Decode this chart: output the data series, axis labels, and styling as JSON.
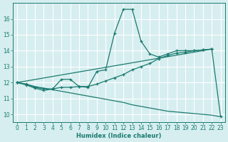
{
  "title": "",
  "xlabel": "Humidex (Indice chaleur)",
  "bg_color": "#d6eef0",
  "grid_color": "#b8d8dc",
  "line_color": "#1a7a6e",
  "xlim": [
    -0.5,
    23.5
  ],
  "ylim": [
    9.5,
    17.0
  ],
  "xticks": [
    0,
    1,
    2,
    3,
    4,
    5,
    6,
    7,
    8,
    9,
    10,
    11,
    12,
    13,
    14,
    15,
    16,
    17,
    18,
    19,
    20,
    21,
    22,
    23
  ],
  "yticks": [
    10,
    11,
    12,
    13,
    14,
    15,
    16
  ],
  "series1_x": [
    0,
    1,
    2,
    3,
    4,
    5,
    6,
    7,
    8,
    9,
    10,
    11,
    12,
    13,
    14,
    15,
    16,
    17,
    18,
    19,
    20,
    21,
    22
  ],
  "series1_y": [
    12.0,
    11.85,
    11.65,
    11.5,
    11.6,
    12.2,
    12.2,
    11.75,
    11.7,
    12.7,
    12.8,
    15.1,
    16.6,
    16.6,
    14.6,
    13.8,
    13.6,
    13.8,
    14.0,
    14.0,
    14.0,
    14.05,
    14.1
  ],
  "series2_x": [
    0,
    1,
    2,
    3,
    4,
    5,
    6,
    7,
    8,
    9,
    10,
    11,
    12,
    13,
    14,
    15,
    16,
    17,
    18,
    19,
    20,
    21,
    22
  ],
  "series2_y": [
    12.0,
    11.9,
    11.7,
    11.6,
    11.6,
    11.7,
    11.7,
    11.75,
    11.75,
    11.9,
    12.1,
    12.3,
    12.5,
    12.8,
    13.0,
    13.2,
    13.5,
    13.7,
    13.85,
    13.9,
    14.0,
    14.05,
    14.1
  ],
  "series3_x": [
    0,
    22,
    23
  ],
  "series3_y": [
    12.0,
    14.1,
    9.85
  ],
  "series_bottom_x": [
    0,
    1,
    2,
    3,
    4,
    5,
    6,
    7,
    8,
    9,
    10,
    11,
    12,
    13,
    14,
    15,
    16,
    17,
    18,
    19,
    20,
    21,
    22,
    23
  ],
  "series_bottom_y": [
    12.0,
    11.9,
    11.75,
    11.65,
    11.55,
    11.45,
    11.35,
    11.25,
    11.15,
    11.05,
    10.95,
    10.85,
    10.75,
    10.6,
    10.5,
    10.4,
    10.3,
    10.2,
    10.15,
    10.1,
    10.05,
    10.0,
    9.95,
    9.85
  ]
}
